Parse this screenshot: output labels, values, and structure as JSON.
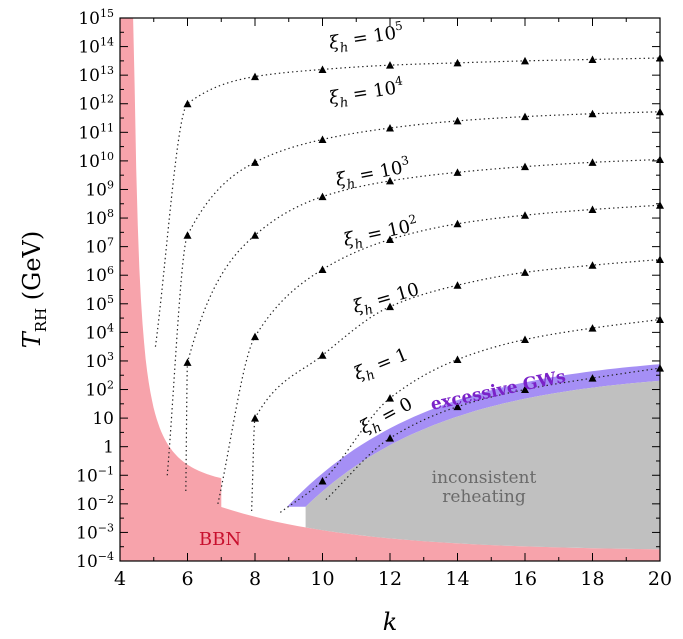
{
  "chart_data": {
    "type": "line",
    "xlabel": "k",
    "ylabel": "T_RH (GeV)",
    "ylabel_main": "T",
    "ylabel_sub": "RH",
    "ylabel_unit": "(GeV)",
    "xlim": [
      4,
      20
    ],
    "ylim_log10": [
      -4,
      15
    ],
    "y_scale": "log",
    "x_ticks": [
      4,
      6,
      8,
      10,
      12,
      14,
      16,
      18,
      20
    ],
    "x_tick_labels": [
      "4",
      "6",
      "8",
      "10",
      "12",
      "14",
      "16",
      "18",
      "20"
    ],
    "y_tick_labels": [
      {
        "base": "10",
        "exp": "15"
      },
      {
        "base": "10",
        "exp": "14"
      },
      {
        "base": "10",
        "exp": "13"
      },
      {
        "base": "10",
        "exp": "12"
      },
      {
        "base": "10",
        "exp": "11"
      },
      {
        "base": "10",
        "exp": "10"
      },
      {
        "base": "10",
        "exp": "9"
      },
      {
        "base": "10",
        "exp": "8"
      },
      {
        "base": "10",
        "exp": "7"
      },
      {
        "base": "10",
        "exp": "6"
      },
      {
        "base": "10",
        "exp": "5"
      },
      {
        "base": "10",
        "exp": "4"
      },
      {
        "base": "10",
        "exp": "3"
      },
      {
        "base": "10",
        "exp": "2"
      },
      {
        "base": "10",
        "exp": ""
      },
      {
        "base": "1",
        "exp": ""
      },
      {
        "base": "10",
        "exp": "−1"
      },
      {
        "base": "10",
        "exp": "−2"
      },
      {
        "base": "10",
        "exp": "−3"
      },
      {
        "base": "10",
        "exp": "−4"
      }
    ],
    "series": [
      {
        "label_base": "ξ",
        "label_sub": "h",
        "label_eq": " = 10",
        "label_exp": "5",
        "color": "#000000",
        "points": [
          [
            6,
            12.0
          ],
          [
            8,
            12.95
          ],
          [
            10,
            13.2
          ],
          [
            12,
            13.35
          ],
          [
            14,
            13.43
          ],
          [
            16,
            13.5
          ],
          [
            18,
            13.55
          ],
          [
            20,
            13.6
          ]
        ]
      },
      {
        "label_base": "ξ",
        "label_sub": "h",
        "label_eq": " = 10",
        "label_exp": "4",
        "color": "#000000",
        "points": [
          [
            6,
            7.4
          ],
          [
            8,
            9.95
          ],
          [
            10,
            10.75
          ],
          [
            12,
            11.15
          ],
          [
            14,
            11.4
          ],
          [
            16,
            11.55
          ],
          [
            18,
            11.65
          ],
          [
            20,
            11.72
          ]
        ]
      },
      {
        "label_base": "ξ",
        "label_sub": "h",
        "label_eq": " = 10",
        "label_exp": "3",
        "color": "#000000",
        "points": [
          [
            6,
            2.95
          ],
          [
            8,
            7.4
          ],
          [
            10,
            8.75
          ],
          [
            12,
            9.3
          ],
          [
            14,
            9.6
          ],
          [
            16,
            9.8
          ],
          [
            18,
            9.95
          ],
          [
            20,
            10.05
          ]
        ]
      },
      {
        "label_base": "ξ",
        "label_sub": "h",
        "label_eq": " = 10",
        "label_exp": "2",
        "color": "#000000",
        "points": [
          [
            8,
            3.85
          ],
          [
            10,
            6.2
          ],
          [
            12,
            7.25
          ],
          [
            14,
            7.8
          ],
          [
            16,
            8.1
          ],
          [
            18,
            8.3
          ],
          [
            20,
            8.45
          ]
        ]
      },
      {
        "label_base": "ξ",
        "label_sub": "h",
        "label_eq": " = 10",
        "label_exp": "",
        "color": "#000000",
        "points": [
          [
            8,
            1.0
          ],
          [
            10,
            3.2
          ],
          [
            12,
            4.9
          ],
          [
            14,
            5.65
          ],
          [
            16,
            6.1
          ],
          [
            18,
            6.35
          ],
          [
            20,
            6.55
          ]
        ]
      },
      {
        "label_base": "ξ",
        "label_sub": "h",
        "label_eq": " = 1",
        "label_exp": "",
        "color": "#000000",
        "points": [
          [
            10,
            -1.2
          ],
          [
            12,
            1.7
          ],
          [
            14,
            3.05
          ],
          [
            16,
            3.75
          ],
          [
            18,
            4.15
          ],
          [
            20,
            4.45
          ]
        ]
      },
      {
        "label_base": "ξ",
        "label_sub": "h",
        "label_eq": " = 0",
        "label_exp": "",
        "color": "#000000",
        "points": [
          [
            12,
            0.3
          ],
          [
            14,
            1.4
          ],
          [
            16,
            2.0
          ],
          [
            18,
            2.4
          ],
          [
            20,
            2.75
          ]
        ]
      }
    ],
    "regions": [
      {
        "name": "BBN",
        "color": "#f7a3ab",
        "label_color": "#c8102e"
      },
      {
        "name": "excessive GWs",
        "color": "#a58ff5",
        "label_color": "#7a22c8"
      },
      {
        "name": "inconsistent reheating",
        "lines": [
          "inconsistent",
          "reheating"
        ],
        "color": "#c0c0c0",
        "label_color": "#6a6a6a"
      }
    ]
  }
}
